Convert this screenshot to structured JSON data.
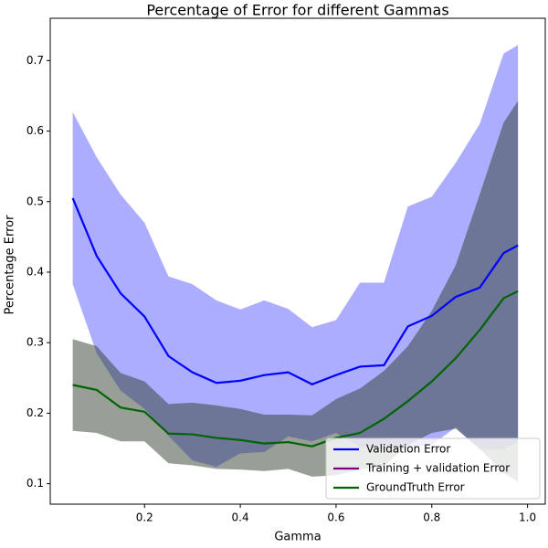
{
  "chart_data": {
    "type": "line",
    "title": "Percentage of Error for different Gammas",
    "xlabel": "Gamma",
    "ylabel": "Percentage Error",
    "x": [
      0.05,
      0.1,
      0.15,
      0.2,
      0.25,
      0.3,
      0.35,
      0.4,
      0.45,
      0.5,
      0.55,
      0.6,
      0.65,
      0.7,
      0.75,
      0.8,
      0.85,
      0.9,
      0.95,
      0.98
    ],
    "series": [
      {
        "name": "Validation Error",
        "color": "#0000ff",
        "band_color": "#0000ff",
        "values": [
          0.505,
          0.423,
          0.37,
          0.337,
          0.281,
          0.258,
          0.243,
          0.246,
          0.254,
          0.258,
          0.241,
          0.254,
          0.266,
          0.268,
          0.323,
          0.338,
          0.365,
          0.378,
          0.427,
          0.438
        ],
        "upper": [
          0.627,
          0.563,
          0.51,
          0.47,
          0.394,
          0.383,
          0.36,
          0.347,
          0.36,
          0.348,
          0.322,
          0.332,
          0.385,
          0.385,
          0.493,
          0.507,
          0.555,
          0.61,
          0.71,
          0.722
        ],
        "lower": [
          0.383,
          0.285,
          0.232,
          0.206,
          0.168,
          0.133,
          0.124,
          0.143,
          0.145,
          0.167,
          0.16,
          0.172,
          0.152,
          0.15,
          0.152,
          0.155,
          0.18,
          0.148,
          0.148,
          0.16
        ]
      },
      {
        "name": "Training + validation Error",
        "color": "#800080",
        "values": [
          null,
          null,
          null,
          null,
          null,
          null,
          null,
          null,
          null,
          null,
          null,
          null,
          null,
          null,
          null,
          null,
          null,
          null,
          null,
          null
        ]
      },
      {
        "name": "GroundTruth Error",
        "color": "#006400",
        "band_color": "#2f3f2f",
        "values": [
          0.24,
          0.233,
          0.208,
          0.202,
          0.171,
          0.17,
          0.165,
          0.162,
          0.157,
          0.159,
          0.153,
          0.165,
          0.172,
          0.192,
          0.217,
          0.245,
          0.278,
          0.318,
          0.363,
          0.373
        ],
        "upper": [
          0.305,
          0.295,
          0.257,
          0.245,
          0.213,
          0.215,
          0.211,
          0.206,
          0.198,
          0.198,
          0.197,
          0.22,
          0.235,
          0.26,
          0.295,
          0.345,
          0.41,
          0.51,
          0.612,
          0.643
        ],
        "lower": [
          0.175,
          0.172,
          0.16,
          0.16,
          0.129,
          0.126,
          0.121,
          0.12,
          0.118,
          0.121,
          0.11,
          0.112,
          0.12,
          0.125,
          0.155,
          0.172,
          0.178,
          0.15,
          0.115,
          0.103
        ]
      }
    ],
    "xlim": [
      0.003,
      1.037
    ],
    "ylim": [
      0.071,
      0.76
    ],
    "xticks": [
      0.2,
      0.4,
      0.6,
      0.8,
      {
        "value": 1,
        "label": "1.0"
      }
    ],
    "yticks": [
      0.1,
      0.2,
      0.3,
      0.4,
      0.5,
      0.6,
      0.7
    ],
    "legend": "lower right"
  }
}
